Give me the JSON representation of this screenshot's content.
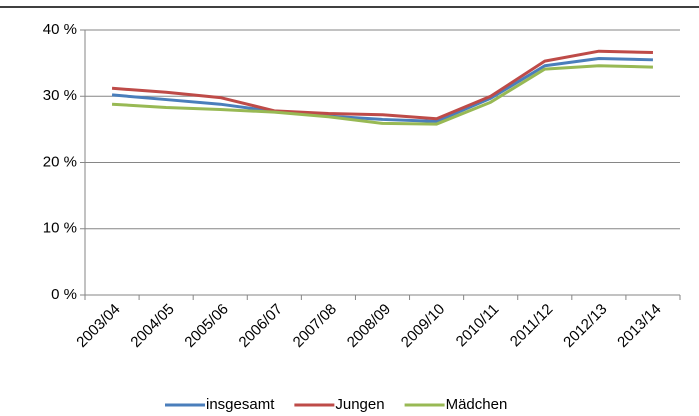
{
  "chart_data": {
    "type": "line",
    "categories": [
      "2003/04",
      "2004/05",
      "2005/06",
      "2006/07",
      "2007/08",
      "2008/09",
      "2009/10",
      "2010/11",
      "2011/12",
      "2012/13",
      "2013/14"
    ],
    "series": [
      {
        "name": "insgesamt",
        "color": "#4a7ebb",
        "values": [
          30.2,
          29.5,
          28.8,
          27.7,
          27.0,
          26.5,
          26.2,
          29.7,
          34.6,
          35.7,
          35.5
        ]
      },
      {
        "name": "Jungen",
        "color": "#be4b48",
        "values": [
          31.2,
          30.6,
          29.8,
          27.8,
          27.4,
          27.2,
          26.6,
          30.0,
          35.3,
          36.8,
          36.6
        ]
      },
      {
        "name": "Mädchen",
        "color": "#98b954",
        "values": [
          28.8,
          28.3,
          28.0,
          27.6,
          26.9,
          25.9,
          25.8,
          29.1,
          34.1,
          34.6,
          34.4
        ]
      }
    ],
    "ylim": [
      0,
      40
    ],
    "yticks": [
      {
        "value": 0,
        "label": "0 %"
      },
      {
        "value": 10,
        "label": "10 %"
      },
      {
        "value": 20,
        "label": "20 %"
      },
      {
        "value": 30,
        "label": "30 %"
      },
      {
        "value": 40,
        "label": "40 %"
      }
    ],
    "grid": true,
    "legend": "bottom"
  }
}
